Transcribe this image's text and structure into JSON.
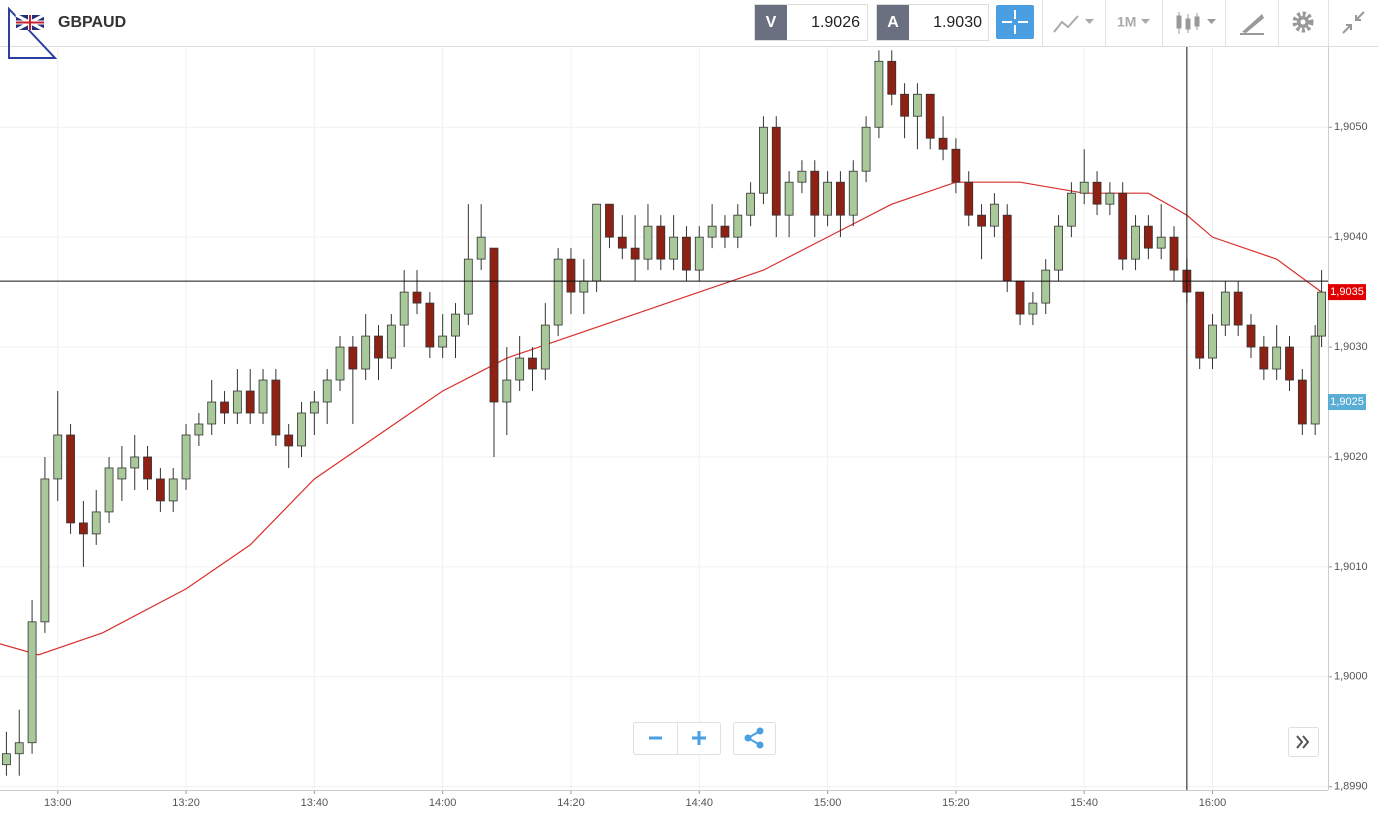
{
  "header": {
    "symbol": "GBPAUD",
    "sell_label": "V",
    "sell_price": "1.9026",
    "buy_label": "A",
    "buy_price": "1.9030",
    "timeframe": "1M"
  },
  "chart_data": {
    "type": "candlestick",
    "up_color": "#a9c99b",
    "down_color": "#8e2113",
    "x": [
      "12:52",
      "12:54",
      "12:56",
      "12:58",
      "13:00",
      "13:02",
      "13:04",
      "13:06",
      "13:08",
      "13:10",
      "13:12",
      "13:14",
      "13:16",
      "13:18",
      "13:20",
      "13:22",
      "13:24",
      "13:26",
      "13:28",
      "13:30",
      "13:32",
      "13:34",
      "13:36",
      "13:38",
      "13:40",
      "13:42",
      "13:44",
      "13:46",
      "13:48",
      "13:50",
      "13:52",
      "13:54",
      "13:56",
      "13:58",
      "14:00",
      "14:02",
      "14:04",
      "14:06",
      "14:08",
      "14:10",
      "14:12",
      "14:14",
      "14:16",
      "14:18",
      "14:20",
      "14:22",
      "14:24",
      "14:26",
      "14:28",
      "14:30",
      "14:32",
      "14:34",
      "14:36",
      "14:38",
      "14:40",
      "14:42",
      "14:44",
      "14:46",
      "14:48",
      "14:50",
      "14:52",
      "14:54",
      "14:56",
      "14:58",
      "15:00",
      "15:02",
      "15:04",
      "15:06",
      "15:08",
      "15:10",
      "15:12",
      "15:14",
      "15:16",
      "15:18",
      "15:20",
      "15:22",
      "15:24",
      "15:26",
      "15:28",
      "15:30",
      "15:32",
      "15:34",
      "15:36",
      "15:38",
      "15:40",
      "15:42",
      "15:44",
      "15:46",
      "15:48",
      "15:50",
      "15:52",
      "15:54",
      "15:56",
      "15:58",
      "16:00",
      "16:02",
      "16:04",
      "16:06",
      "16:08",
      "16:10",
      "16:12",
      "16:14",
      "16:16",
      "16:17"
    ],
    "candles": [
      [
        1.8992,
        1.8995,
        1.8991,
        1.8993
      ],
      [
        1.8993,
        1.8997,
        1.8991,
        1.8994
      ],
      [
        1.8994,
        1.9007,
        1.8993,
        1.9005
      ],
      [
        1.9005,
        1.902,
        1.9004,
        1.9018
      ],
      [
        1.9018,
        1.9026,
        1.9016,
        1.9022
      ],
      [
        1.9022,
        1.9023,
        1.9013,
        1.9014
      ],
      [
        1.9014,
        1.9016,
        1.901,
        1.9013
      ],
      [
        1.9013,
        1.9017,
        1.9012,
        1.9015
      ],
      [
        1.9015,
        1.902,
        1.9014,
        1.9019
      ],
      [
        1.9018,
        1.9021,
        1.9016,
        1.9019
      ],
      [
        1.9019,
        1.9022,
        1.9017,
        1.902
      ],
      [
        1.902,
        1.9021,
        1.9017,
        1.9018
      ],
      [
        1.9018,
        1.9019,
        1.9015,
        1.9016
      ],
      [
        1.9016,
        1.9019,
        1.9015,
        1.9018
      ],
      [
        1.9018,
        1.9023,
        1.9017,
        1.9022
      ],
      [
        1.9022,
        1.9024,
        1.9021,
        1.9023
      ],
      [
        1.9023,
        1.9027,
        1.9022,
        1.9025
      ],
      [
        1.9025,
        1.9026,
        1.9023,
        1.9024
      ],
      [
        1.9024,
        1.9028,
        1.9023,
        1.9026
      ],
      [
        1.9026,
        1.9028,
        1.9023,
        1.9024
      ],
      [
        1.9024,
        1.9028,
        1.9023,
        1.9027
      ],
      [
        1.9027,
        1.9028,
        1.9021,
        1.9022
      ],
      [
        1.9022,
        1.9023,
        1.9019,
        1.9021
      ],
      [
        1.9021,
        1.9025,
        1.902,
        1.9024
      ],
      [
        1.9024,
        1.9026,
        1.9022,
        1.9025
      ],
      [
        1.9025,
        1.9028,
        1.9023,
        1.9027
      ],
      [
        1.9027,
        1.9031,
        1.9026,
        1.903
      ],
      [
        1.903,
        1.9031,
        1.9023,
        1.9028
      ],
      [
        1.9028,
        1.9033,
        1.9027,
        1.9031
      ],
      [
        1.9031,
        1.9032,
        1.9027,
        1.9029
      ],
      [
        1.9029,
        1.9033,
        1.9028,
        1.9032
      ],
      [
        1.9032,
        1.9037,
        1.903,
        1.9035
      ],
      [
        1.9035,
        1.9037,
        1.9033,
        1.9034
      ],
      [
        1.9034,
        1.9035,
        1.9029,
        1.903
      ],
      [
        1.903,
        1.9033,
        1.9029,
        1.9031
      ],
      [
        1.9031,
        1.9034,
        1.9029,
        1.9033
      ],
      [
        1.9033,
        1.9043,
        1.9032,
        1.9038
      ],
      [
        1.9038,
        1.9043,
        1.9037,
        1.904
      ],
      [
        1.9039,
        1.9039,
        1.902,
        1.9025
      ],
      [
        1.9025,
        1.903,
        1.9022,
        1.9027
      ],
      [
        1.9027,
        1.9031,
        1.9026,
        1.9029
      ],
      [
        1.9029,
        1.903,
        1.9026,
        1.9028
      ],
      [
        1.9028,
        1.9034,
        1.9027,
        1.9032
      ],
      [
        1.9032,
        1.9039,
        1.9031,
        1.9038
      ],
      [
        1.9038,
        1.9039,
        1.9033,
        1.9035
      ],
      [
        1.9035,
        1.9038,
        1.9033,
        1.9036
      ],
      [
        1.9036,
        1.9043,
        1.9035,
        1.9043
      ],
      [
        1.9043,
        1.9043,
        1.9039,
        1.904
      ],
      [
        1.904,
        1.9042,
        1.9038,
        1.9039
      ],
      [
        1.9039,
        1.9042,
        1.9036,
        1.9038
      ],
      [
        1.9038,
        1.9043,
        1.9037,
        1.9041
      ],
      [
        1.9041,
        1.9042,
        1.9037,
        1.9038
      ],
      [
        1.9038,
        1.9042,
        1.9037,
        1.904
      ],
      [
        1.904,
        1.9041,
        1.9036,
        1.9037
      ],
      [
        1.9037,
        1.9041,
        1.9036,
        1.904
      ],
      [
        1.904,
        1.9043,
        1.9039,
        1.9041
      ],
      [
        1.9041,
        1.9042,
        1.9039,
        1.904
      ],
      [
        1.904,
        1.9043,
        1.9039,
        1.9042
      ],
      [
        1.9042,
        1.9045,
        1.9041,
        1.9044
      ],
      [
        1.9044,
        1.9051,
        1.9043,
        1.905
      ],
      [
        1.905,
        1.9051,
        1.904,
        1.9042
      ],
      [
        1.9042,
        1.9046,
        1.904,
        1.9045
      ],
      [
        1.9045,
        1.9047,
        1.9044,
        1.9046
      ],
      [
        1.9046,
        1.9047,
        1.904,
        1.9042
      ],
      [
        1.9042,
        1.9046,
        1.9041,
        1.9045
      ],
      [
        1.9045,
        1.9046,
        1.904,
        1.9042
      ],
      [
        1.9042,
        1.9047,
        1.9041,
        1.9046
      ],
      [
        1.9046,
        1.9051,
        1.9045,
        1.905
      ],
      [
        1.905,
        1.9057,
        1.9049,
        1.9056
      ],
      [
        1.9056,
        1.9057,
        1.9052,
        1.9053
      ],
      [
        1.9053,
        1.9054,
        1.9049,
        1.9051
      ],
      [
        1.9051,
        1.9054,
        1.9048,
        1.9053
      ],
      [
        1.9053,
        1.9053,
        1.9048,
        1.9049
      ],
      [
        1.9049,
        1.9051,
        1.9047,
        1.9048
      ],
      [
        1.9048,
        1.9049,
        1.9044,
        1.9045
      ],
      [
        1.9045,
        1.9046,
        1.9041,
        1.9042
      ],
      [
        1.9042,
        1.9043,
        1.9038,
        1.9041
      ],
      [
        1.9041,
        1.9044,
        1.904,
        1.9043
      ],
      [
        1.9042,
        1.9043,
        1.9035,
        1.9036
      ],
      [
        1.9036,
        1.9036,
        1.9032,
        1.9033
      ],
      [
        1.9033,
        1.9035,
        1.9032,
        1.9034
      ],
      [
        1.9034,
        1.9038,
        1.9033,
        1.9037
      ],
      [
        1.9037,
        1.9042,
        1.9036,
        1.9041
      ],
      [
        1.9041,
        1.9045,
        1.904,
        1.9044
      ],
      [
        1.9044,
        1.9048,
        1.9043,
        1.9045
      ],
      [
        1.9045,
        1.9046,
        1.9042,
        1.9043
      ],
      [
        1.9043,
        1.9045,
        1.9042,
        1.9044
      ],
      [
        1.9044,
        1.9045,
        1.9037,
        1.9038
      ],
      [
        1.9038,
        1.9042,
        1.9037,
        1.9041
      ],
      [
        1.9041,
        1.9042,
        1.9038,
        1.9039
      ],
      [
        1.9039,
        1.9043,
        1.9038,
        1.904
      ],
      [
        1.904,
        1.9041,
        1.9036,
        1.9037
      ],
      [
        1.9037,
        1.9038,
        1.9034,
        1.9035
      ],
      [
        1.9035,
        1.9035,
        1.9028,
        1.9029
      ],
      [
        1.9029,
        1.9033,
        1.9028,
        1.9032
      ],
      [
        1.9032,
        1.9036,
        1.9031,
        1.9035
      ],
      [
        1.9035,
        1.9036,
        1.9031,
        1.9032
      ],
      [
        1.9032,
        1.9033,
        1.9029,
        1.903
      ],
      [
        1.903,
        1.9031,
        1.9027,
        1.9028
      ],
      [
        1.9028,
        1.9032,
        1.9027,
        1.903
      ],
      [
        1.903,
        1.9031,
        1.9026,
        1.9027
      ],
      [
        1.9027,
        1.9028,
        1.9022,
        1.9023
      ],
      [
        1.9023,
        1.9032,
        1.9022,
        1.9031
      ],
      [
        1.9031,
        1.9037,
        1.903,
        1.9035
      ]
    ],
    "moving_average": {
      "color": "#d9302c",
      "x": [
        "12:51",
        "12:57",
        "13:07",
        "13:20",
        "13:30",
        "13:40",
        "13:50",
        "14:00",
        "14:10",
        "14:20",
        "14:30",
        "14:40",
        "14:50",
        "15:00",
        "15:10",
        "15:20",
        "15:30",
        "15:40",
        "15:50",
        "15:56",
        "16:00",
        "16:10",
        "16:17"
      ],
      "values": [
        1.9003,
        1.9002,
        1.9004,
        1.9008,
        1.9012,
        1.9018,
        1.9022,
        1.9026,
        1.9029,
        1.9031,
        1.9033,
        1.9035,
        1.9037,
        1.904,
        1.9043,
        1.9045,
        1.9045,
        1.9044,
        1.9044,
        1.9042,
        1.904,
        1.9038,
        1.9035
      ]
    },
    "xlim": [
      "12:51",
      "16:18"
    ],
    "xticks": [
      "13:00",
      "13:20",
      "13:40",
      "14:00",
      "14:20",
      "14:40",
      "15:00",
      "15:20",
      "15:40",
      "16:00"
    ],
    "ylim": [
      1.89897,
      1.90573
    ],
    "yticks": [
      {
        "value": 1.899,
        "label": "1,8990"
      },
      {
        "value": 1.9,
        "label": "1,9000"
      },
      {
        "value": 1.901,
        "label": "1,9010"
      },
      {
        "value": 1.902,
        "label": "1,9020"
      },
      {
        "value": 1.903,
        "label": "1,9030"
      },
      {
        "value": 1.904,
        "label": "1,9040"
      },
      {
        "value": 1.905,
        "label": "1,9050"
      }
    ],
    "grid": true,
    "price_tags": [
      {
        "value": 1.9035,
        "label": "1,9035",
        "color": "#e00000"
      },
      {
        "value": 1.9025,
        "label": "1,9025",
        "color": "#5aaed6"
      }
    ],
    "crosshair": {
      "x": "15:56",
      "y": 1.9036
    }
  }
}
